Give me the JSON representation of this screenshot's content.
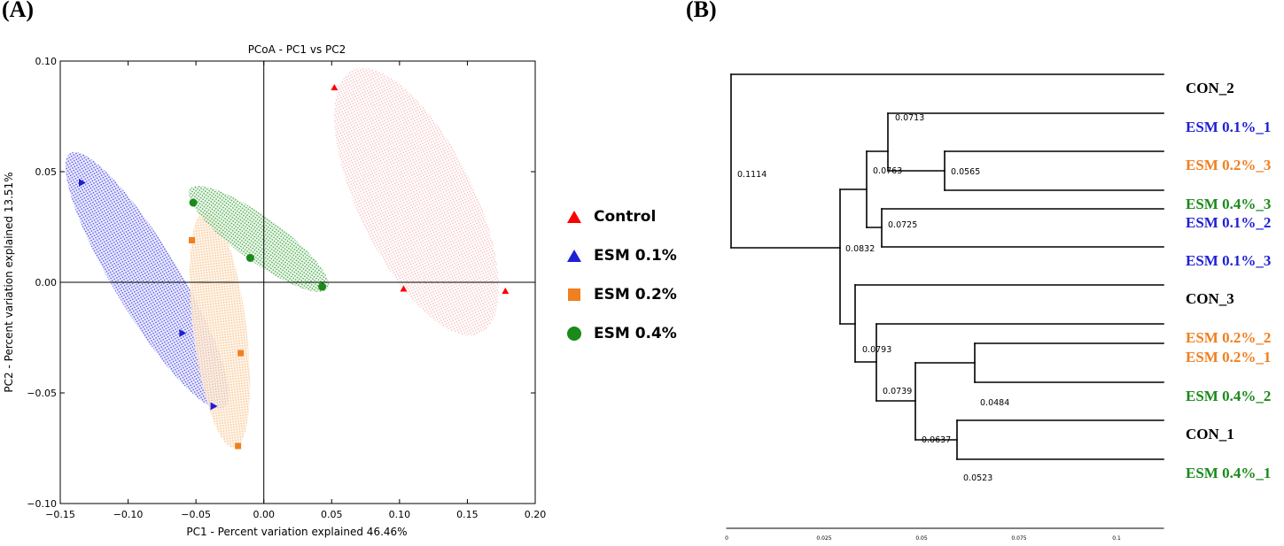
{
  "panel_labels": {
    "a": "(A)",
    "b": "(B)"
  },
  "colors": {
    "control": "#ff0000",
    "esm01": "#1f1fd6",
    "esm02": "#f07f1e",
    "esm04": "#1a8a1a",
    "black": "#000000"
  },
  "chart_data": [
    {
      "type": "scatter",
      "title": "PCoA - PC1 vs PC2",
      "xlabel": "PC1 - Percent variation explained 46.46%",
      "ylabel": "PC2 - Percent variation explained 13.51%",
      "xlim": [
        -0.15,
        0.2
      ],
      "ylim": [
        -0.1,
        0.1
      ],
      "xticks": [
        -0.15,
        -0.1,
        -0.05,
        0.0,
        0.05,
        0.1,
        0.15,
        0.2
      ],
      "xtick_labels": [
        "−0.15",
        "−0.10",
        "−0.05",
        "0.00",
        "0.05",
        "0.10",
        "0.15",
        "0.20"
      ],
      "yticks": [
        -0.1,
        -0.05,
        0.0,
        0.05,
        0.1
      ],
      "ytick_labels": [
        "−0.10",
        "−0.05",
        "0.00",
        "0.05",
        "0.10"
      ],
      "legend_position": "right",
      "series": [
        {
          "name": "Control",
          "marker": "triangle",
          "color": "#ff0000",
          "x": [
            0.052,
            0.103,
            0.178
          ],
          "y": [
            0.088,
            -0.003,
            -0.004
          ]
        },
        {
          "name": "ESM 0.1%",
          "marker": "triangle-right",
          "color": "#1f1fd6",
          "x": [
            -0.134,
            -0.06,
            -0.037
          ],
          "y": [
            0.045,
            -0.023,
            -0.056
          ]
        },
        {
          "name": "ESM 0.2%",
          "marker": "square",
          "color": "#f07f1e",
          "x": [
            -0.053,
            -0.017,
            -0.019
          ],
          "y": [
            0.019,
            -0.032,
            -0.074
          ]
        },
        {
          "name": "ESM 0.4%",
          "marker": "circle",
          "color": "#1a8a1a",
          "x": [
            -0.052,
            -0.01,
            0.043
          ],
          "y": [
            0.036,
            0.011,
            -0.002
          ]
        }
      ]
    },
    {
      "type": "dendrogram",
      "leaves": [
        {
          "label": "CON_2",
          "group": "black"
        },
        {
          "label": "ESM 0.1%_1",
          "group": "esm01"
        },
        {
          "label": "ESM 0.2%_3",
          "group": "esm02"
        },
        {
          "label": "ESM 0.4%_3",
          "group": "esm04"
        },
        {
          "label": "ESM 0.1%_2",
          "group": "esm01"
        },
        {
          "label": "ESM 0.1%_3",
          "group": "esm01"
        },
        {
          "label": "CON_3",
          "group": "black"
        },
        {
          "label": "ESM 0.2%_2",
          "group": "esm02"
        },
        {
          "label": "ESM 0.2%_1",
          "group": "esm02"
        },
        {
          "label": "ESM 0.4%_2",
          "group": "esm04"
        },
        {
          "label": "CON_1",
          "group": "black"
        },
        {
          "label": "ESM 0.4%_1",
          "group": "esm04"
        }
      ],
      "nodes": [
        {
          "label": "0.1114",
          "height": 0.1114
        },
        {
          "label": "0.0832",
          "height": 0.0832
        },
        {
          "label": "0.0763",
          "height": 0.0763
        },
        {
          "label": "0.0713",
          "height": 0.0713
        },
        {
          "label": "0.0565",
          "height": 0.0565
        },
        {
          "label": "0.0725",
          "height": 0.0725
        },
        {
          "label": "0.0793",
          "height": 0.0793
        },
        {
          "label": "0.0739",
          "height": 0.0739
        },
        {
          "label": "0.0637",
          "height": 0.0637
        },
        {
          "label": "0.0484",
          "height": 0.0484
        },
        {
          "label": "0.0523",
          "height": 0.0523
        }
      ],
      "xticks": [
        0,
        0.025,
        0.05,
        0.075,
        0.1
      ],
      "xtick_labels": [
        "0",
        "0.025",
        "0.05",
        "0.075",
        "0.1"
      ]
    }
  ]
}
